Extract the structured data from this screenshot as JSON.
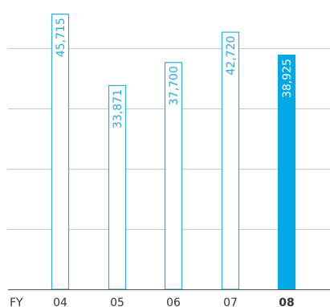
{
  "chart_data": {
    "type": "bar",
    "title": "",
    "xlabel": "",
    "ylabel": "",
    "x_prefix": "FY",
    "categories": [
      "04",
      "05",
      "06",
      "07",
      "08"
    ],
    "highlight_index": 4,
    "series": [
      {
        "values": [
          45715,
          33871,
          37700,
          42720,
          38925
        ]
      }
    ],
    "labels": [
      "45,715",
      "33,871",
      "37,700",
      "42,720",
      "38,925"
    ],
    "ylim": [
      0,
      48000
    ],
    "grid": true,
    "colors": {
      "outline": "#29abe2",
      "highlight": "#00a9e6",
      "grid": "#c9c9c9",
      "axis": "#555555",
      "tick_text": "#333333",
      "highlight_label": "#ffffff"
    }
  }
}
